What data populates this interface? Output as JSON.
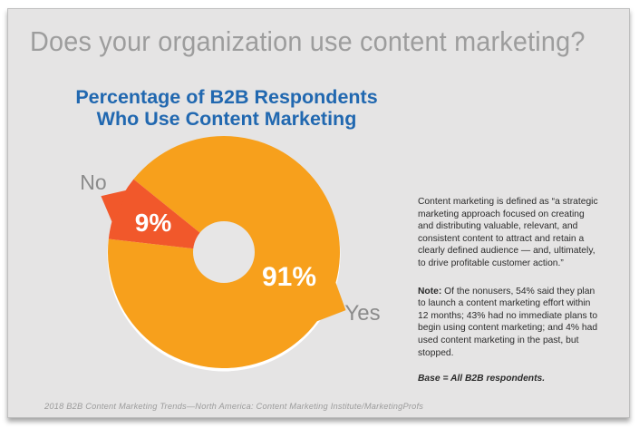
{
  "header": {
    "question": "Does your organization use content marketing?"
  },
  "chart": {
    "title_line1": "Percentage of B2B Respondents",
    "title_line2": "Who Use Content Marketing"
  },
  "chart_data": {
    "type": "pie",
    "subtype": "donut",
    "title": "Percentage of B2B Respondents Who Use Content Marketing",
    "categories": [
      "Yes",
      "No"
    ],
    "values": [
      91,
      9
    ],
    "unit": "%",
    "data_labels": [
      "91%",
      "9%"
    ],
    "colors": [
      "#F7A01C",
      "#F1582B"
    ],
    "hole_color": "#e7e6e6",
    "legend_position": "callout labels outside slices"
  },
  "sidebar": {
    "definition": "Content marketing is defined as “a strategic marketing approach focused on creating and distributing valuable, relevant, and consistent content to attract and retain a clearly defined audience — and, ultimately, to drive profitable customer action.”",
    "note_label": "Note:",
    "note_text": " Of the nonusers, 54% said they plan to launch a content marketing effort within 12 months; 43% had no immediate plans to begin using content marketing; and 4% had used content marketing in the past, but stopped.",
    "base": "Base = All B2B respondents."
  },
  "footer": {
    "source": "2018 B2B Content Marketing Trends—North America: Content Marketing Institute/MarketingProfs"
  }
}
